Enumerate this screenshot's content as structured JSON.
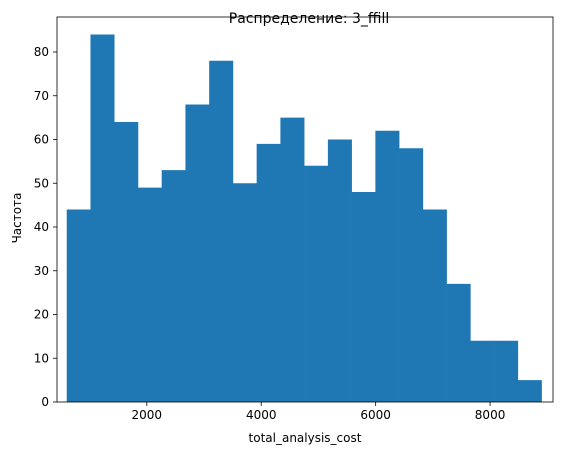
{
  "chart_data": {
    "type": "bar",
    "subtype": "histogram",
    "title": "Распределение: 3_ffill",
    "xlabel": "total_analysis_cost",
    "ylabel": "Частота",
    "xlim": [
      430,
      9100
    ],
    "ylim": [
      0,
      88
    ],
    "xticks": [
      2000,
      4000,
      6000,
      8000
    ],
    "yticks": [
      0,
      10,
      20,
      30,
      40,
      50,
      60,
      70,
      80
    ],
    "grid": false,
    "bar_color": "#1f77b4",
    "bin_edges": [
      600,
      1015,
      1430,
      1845,
      2260,
      2675,
      3090,
      3505,
      3920,
      4335,
      4750,
      5165,
      5580,
      5995,
      6410,
      6825,
      7240,
      7655,
      8070,
      8485,
      8900
    ],
    "values": [
      44,
      84,
      64,
      49,
      53,
      68,
      78,
      50,
      59,
      65,
      54,
      60,
      48,
      62,
      58,
      44,
      27,
      14,
      14,
      5
    ]
  }
}
